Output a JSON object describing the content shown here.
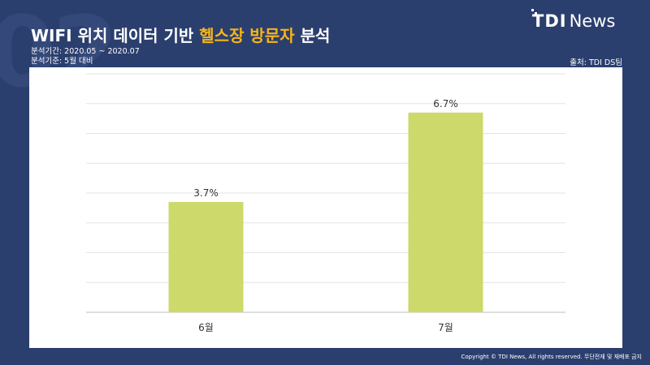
{
  "header": {
    "title_main": "WIFI 위치 데이터 기반",
    "title_highlight": "헬스장 방문자",
    "title_tail": "분석",
    "period": "분석기간: 2020.05 ~ 2020.07",
    "basis": "분석기준: 5월 대비",
    "source": "출처: TDI DS팀",
    "watermark": "02"
  },
  "logo": {
    "mark": "TDI",
    "brand": "News"
  },
  "footer": {
    "copyright": "Copyright © TDI News, All rights reserved. 무단전재 및 재배포 금지"
  },
  "colors": {
    "background": "#2b3f6e",
    "bar": "#cdd96a",
    "highlight": "#f6b41a"
  },
  "chart_data": {
    "type": "bar",
    "categories": [
      "6월",
      "7월"
    ],
    "values": [
      3.7,
      6.7
    ],
    "value_labels": [
      "3.7%",
      "6.7%"
    ],
    "ylim": [
      0,
      8
    ],
    "grid": true
  }
}
